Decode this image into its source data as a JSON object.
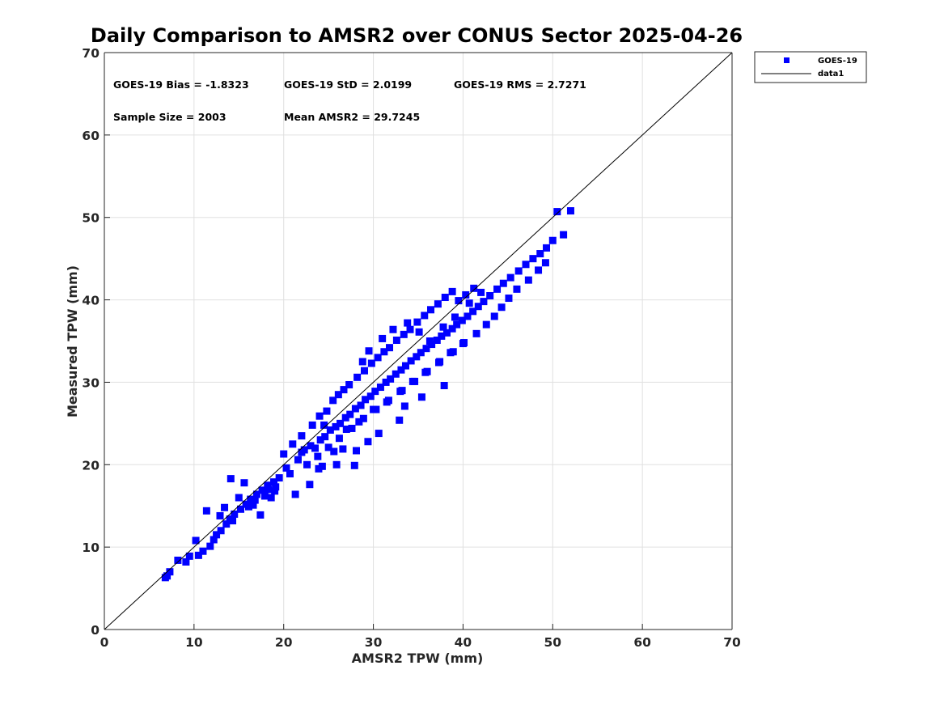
{
  "chart_data": {
    "type": "scatter",
    "title": "Daily Comparison to AMSR2 over CONUS Sector 2025-04-26",
    "xlabel": "AMSR2 TPW (mm)",
    "ylabel": "Measured TPW (mm)",
    "xlim": [
      0,
      70
    ],
    "ylim": [
      0,
      70
    ],
    "xticks": [
      0,
      10,
      20,
      30,
      40,
      50,
      60,
      70
    ],
    "yticks": [
      0,
      10,
      20,
      30,
      40,
      50,
      60,
      70
    ],
    "grid": true,
    "legend_position": "outside-top-right",
    "colors": {
      "marker": "#0000ff",
      "line": "#000000",
      "grid": "#e0e0e0",
      "axis": "#262626"
    },
    "stats": {
      "bias": "GOES-19 Bias = -1.8323",
      "std": "GOES-19 StD = 2.0199",
      "rms": "GOES-19 RMS = 2.7271",
      "sample_size": "Sample Size = 2003",
      "mean": "Mean AMSR2 = 29.7245"
    },
    "series": [
      {
        "name": "GOES-19",
        "kind": "markers",
        "color": "#0000ff",
        "x": [
          7.0,
          7.3,
          6.8,
          9.1,
          10.5,
          11.0,
          10.2,
          11.8,
          12.5,
          13.0,
          13.6,
          14.0,
          14.5,
          15.2,
          15.8,
          16.3,
          17.0,
          17.6,
          18.2,
          18.9,
          19.5,
          20.3,
          13.4,
          14.3,
          12.2,
          15.0,
          16.1,
          16.8,
          17.9,
          19.1,
          18.6,
          20.0,
          21.0,
          21.6,
          22.3,
          23.0,
          23.5,
          24.1,
          24.6,
          25.2,
          25.8,
          26.3,
          26.9,
          27.4,
          28.0,
          28.6,
          29.1,
          29.7,
          30.2,
          30.8,
          31.4,
          31.9,
          32.5,
          33.1,
          33.6,
          34.2,
          34.8,
          35.3,
          35.9,
          36.5,
          37.1,
          37.6,
          38.2,
          38.8,
          39.3,
          39.9,
          40.5,
          41.1,
          41.7,
          42.3,
          43.0,
          43.8,
          44.5,
          45.3,
          46.2,
          47.0,
          47.8,
          48.6,
          49.3,
          50.0,
          51.2,
          52.0,
          50.5,
          22.0,
          23.2,
          24.0,
          24.8,
          25.5,
          26.1,
          26.7,
          27.3,
          28.2,
          29.0,
          29.8,
          30.5,
          31.2,
          31.8,
          32.6,
          33.4,
          34.1,
          34.9,
          35.7,
          36.4,
          37.2,
          38.0,
          38.8,
          39.5,
          40.3,
          41.2,
          27.0,
          28.4,
          30.0,
          31.5,
          33.0,
          34.4,
          35.8,
          37.3,
          38.6,
          40.0,
          22.6,
          23.8,
          25.0,
          26.2,
          27.6,
          28.9,
          30.3,
          31.7,
          33.2,
          34.6,
          36.0,
          37.4,
          38.9,
          40.1,
          41.5,
          42.6,
          43.5,
          44.3,
          45.1,
          46.0,
          47.3,
          48.4,
          49.2,
          29.5,
          31.0,
          32.2,
          33.8,
          35.1,
          36.3,
          37.8,
          39.1,
          40.7,
          42.0,
          24.5,
          25.6,
          27.9,
          30.6,
          32.9,
          35.4,
          37.9,
          28.8,
          33.5,
          23.9,
          26.6,
          22.0,
          24.3,
          25.9,
          28.1,
          29.4,
          21.3,
          22.9,
          16.6,
          17.4,
          19.0,
          15.6,
          14.1,
          12.9,
          11.4,
          9.5,
          8.2,
          18.3,
          20.7
        ],
        "y": [
          6.5,
          7.0,
          6.3,
          8.2,
          9.0,
          9.5,
          10.8,
          10.1,
          11.5,
          12.0,
          12.8,
          13.4,
          14.0,
          14.6,
          15.2,
          15.8,
          16.4,
          16.9,
          17.5,
          17.9,
          18.4,
          19.6,
          14.8,
          13.2,
          10.9,
          16.0,
          14.9,
          15.7,
          16.2,
          17.3,
          16.0,
          21.3,
          22.5,
          20.6,
          21.8,
          22.3,
          22.0,
          23.0,
          23.4,
          24.2,
          24.6,
          25.0,
          25.7,
          26.1,
          26.8,
          27.2,
          27.9,
          28.3,
          28.9,
          29.4,
          30.0,
          30.4,
          31.0,
          31.5,
          32.0,
          32.6,
          33.1,
          33.6,
          34.1,
          34.6,
          35.1,
          35.6,
          36.0,
          36.5,
          37.0,
          37.5,
          38.0,
          38.6,
          39.2,
          39.8,
          40.5,
          41.3,
          42.0,
          42.7,
          43.5,
          44.3,
          45.0,
          45.6,
          46.3,
          47.2,
          47.9,
          50.8,
          50.7,
          23.5,
          24.8,
          25.9,
          26.5,
          27.8,
          28.5,
          29.1,
          29.7,
          30.6,
          31.4,
          32.3,
          33.0,
          33.7,
          34.2,
          35.1,
          35.8,
          36.4,
          37.3,
          38.1,
          38.8,
          39.5,
          40.3,
          41.0,
          39.9,
          40.6,
          41.4,
          24.3,
          25.2,
          26.7,
          27.6,
          28.9,
          30.1,
          31.2,
          32.4,
          33.6,
          34.7,
          20.0,
          21.0,
          22.1,
          23.2,
          24.4,
          25.6,
          26.7,
          27.8,
          29.0,
          30.1,
          31.3,
          32.5,
          33.7,
          34.8,
          35.9,
          37.0,
          38.0,
          39.1,
          40.2,
          41.3,
          42.4,
          43.6,
          44.5,
          33.8,
          35.3,
          36.4,
          37.2,
          36.1,
          35.0,
          36.7,
          37.9,
          39.6,
          40.9,
          24.8,
          21.6,
          19.9,
          23.8,
          25.4,
          28.2,
          29.6,
          32.5,
          27.1,
          19.5,
          21.9,
          21.5,
          19.8,
          20.0,
          21.7,
          22.8,
          16.4,
          17.6,
          15.1,
          13.9,
          16.8,
          17.8,
          18.3,
          13.8,
          14.4,
          8.9,
          8.4,
          17.0,
          18.9
        ]
      },
      {
        "name": "data1",
        "kind": "line",
        "color": "#000000",
        "x": [
          0,
          70
        ],
        "y": [
          0,
          70
        ]
      }
    ]
  }
}
